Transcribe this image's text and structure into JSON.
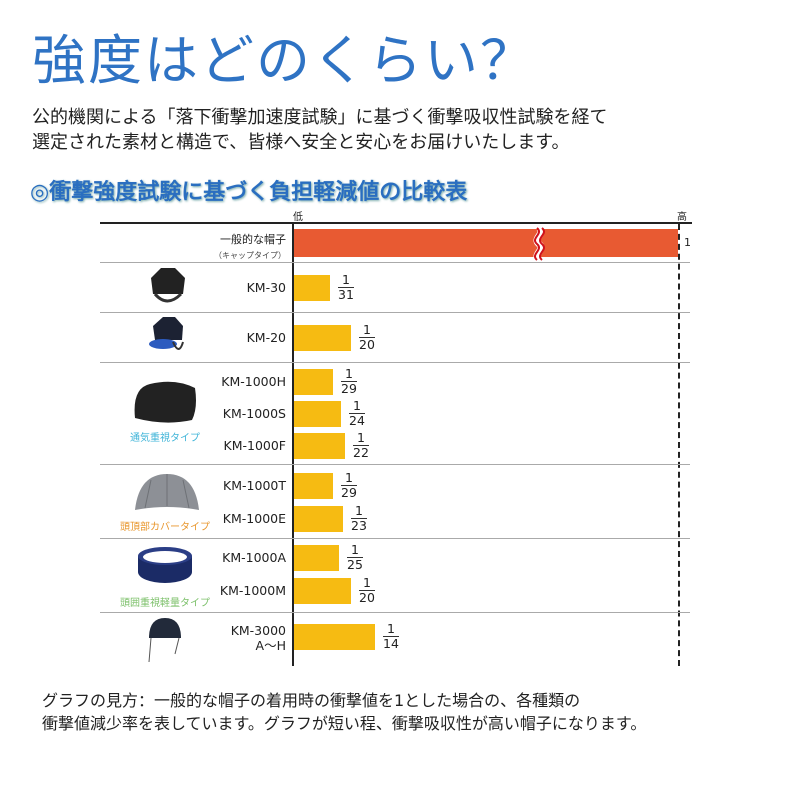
{
  "title": "強度はどのくらい？",
  "intro": [
    "公的機関による「落下衝撃加速度試験」に基づく衝撃吸収性試験を経て",
    "選定された素材と構造で、皆様へ安全と安心をお届けいたします。"
  ],
  "heading": "◎衝撃強度試験に基づく負担軽減値の比較表",
  "chart_data": {
    "type": "bar",
    "orientation": "horizontal",
    "axis_low_label": "低",
    "axis_high_label": "高",
    "categories": [
      "一般的な帽子（キャップタイプ）",
      "KM-30",
      "KM-20",
      "KM-1000H",
      "KM-1000S",
      "KM-1000F",
      "KM-1000T",
      "KM-1000E",
      "KM-1000A",
      "KM-1000M",
      "KM-3000 A〜H"
    ],
    "values": [
      1,
      0.0323,
      0.05,
      0.0345,
      0.0417,
      0.0455,
      0.0345,
      0.0435,
      0.04,
      0.05,
      0.0714
    ],
    "value_labels": [
      "1",
      "1/31",
      "1/20",
      "1/29",
      "1/24",
      "1/22",
      "1/29",
      "1/23",
      "1/25",
      "1/20",
      "1/14"
    ],
    "axis_break": true,
    "colors": {
      "reference": "#e85a32",
      "product": "#f6bb12",
      "break": "#d0121b"
    }
  },
  "rows": [
    {
      "label": "一般的な帽子",
      "sub": "（キャップタイプ）",
      "num": "1"
    },
    {
      "label": "KM-30",
      "num": "1",
      "den": "31"
    },
    {
      "label": "KM-20",
      "num": "1",
      "den": "20"
    },
    {
      "label": "KM-1000H",
      "num": "1",
      "den": "29"
    },
    {
      "label": "KM-1000S",
      "num": "1",
      "den": "24"
    },
    {
      "label": "KM-1000F",
      "num": "1",
      "den": "22"
    },
    {
      "label": "KM-1000T",
      "num": "1",
      "den": "29"
    },
    {
      "label": "KM-1000E",
      "num": "1",
      "den": "23"
    },
    {
      "label": "KM-1000A",
      "num": "1",
      "den": "25"
    },
    {
      "label": "KM-1000M",
      "num": "1",
      "den": "20"
    },
    {
      "label": "KM-3000",
      "sub": "A〜H",
      "num": "1",
      "den": "14"
    }
  ],
  "groups": [
    {
      "caption": "通気重視タイプ",
      "color": "#3fb4d8"
    },
    {
      "caption": "頭頂部カバータイプ",
      "color": "#e8962c"
    },
    {
      "caption": "頭囲重視軽量タイプ",
      "color": "#7cc06a"
    }
  ],
  "note": [
    "グラフの見方：一般的な帽子の着用時の衝撃値を1とした場合の、各種類の",
    "衝撃値減少率を表しています。グラフが短い程、衝撃吸収性が高い帽子になります。"
  ]
}
